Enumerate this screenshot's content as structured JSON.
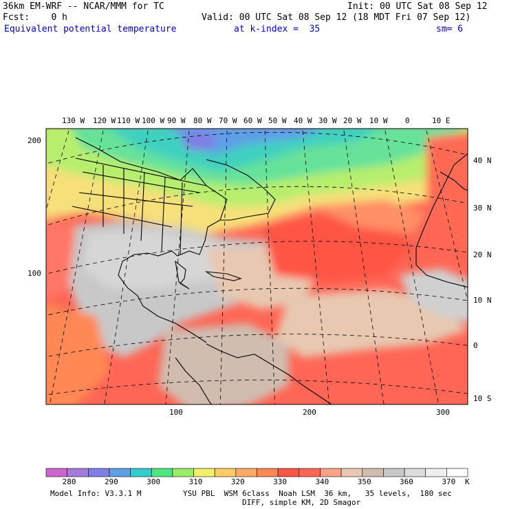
{
  "header": {
    "model": "36km EM-WRF -- NCAR/MMM for TC",
    "init": "Init: 00 UTC Sat 08 Sep 12",
    "fcst": "Fcst:    0 h",
    "valid": "Valid: 00 UTC Sat 08 Sep 12 (18 MDT Fri 07 Sep 12)",
    "field": "Equivalent potential temperature",
    "level": "at k-index =  35",
    "smooth": "sm= 6"
  },
  "map": {
    "lon_labels": [
      "130 W",
      "120 W",
      "110 W",
      "100 W",
      "90 W",
      "80 W",
      "70 W",
      "60 W",
      "50 W",
      "40 W",
      "30 W",
      "20 W",
      "10 W",
      "0",
      "10 E"
    ],
    "lat_labels": [
      "40 N",
      "30 N",
      "20 N",
      "10 N",
      "0",
      "10 S"
    ],
    "grid_y_labels": [
      "200",
      "100"
    ],
    "grid_x_labels": [
      "100",
      "200",
      "300"
    ]
  },
  "colorbar": {
    "unit": "K",
    "labels": [
      "280",
      "290",
      "300",
      "310",
      "320",
      "330",
      "340",
      "350",
      "360",
      "370"
    ],
    "colors": [
      "#cc66cc",
      "#a67ad9",
      "#7f7fe6",
      "#5f9fe6",
      "#33cccc",
      "#4de680",
      "#99ee66",
      "#f0f066",
      "#ffcc66",
      "#ffaa66",
      "#ff8855",
      "#ff5544",
      "#ff6655",
      "#ffa088",
      "#e8c8b0",
      "#d0bdb0",
      "#c8c8c8",
      "#dddddd",
      "#eeeeee",
      "#ffffff"
    ]
  },
  "footer": {
    "line1_left": "Model Info: V3.3.1 M",
    "line1_right": "YSU PBL  WSM 6class  Noah LSM  36 km,   35 levels,  180 sec",
    "line2": "DIFF, simple KM, 2D Smagor"
  }
}
